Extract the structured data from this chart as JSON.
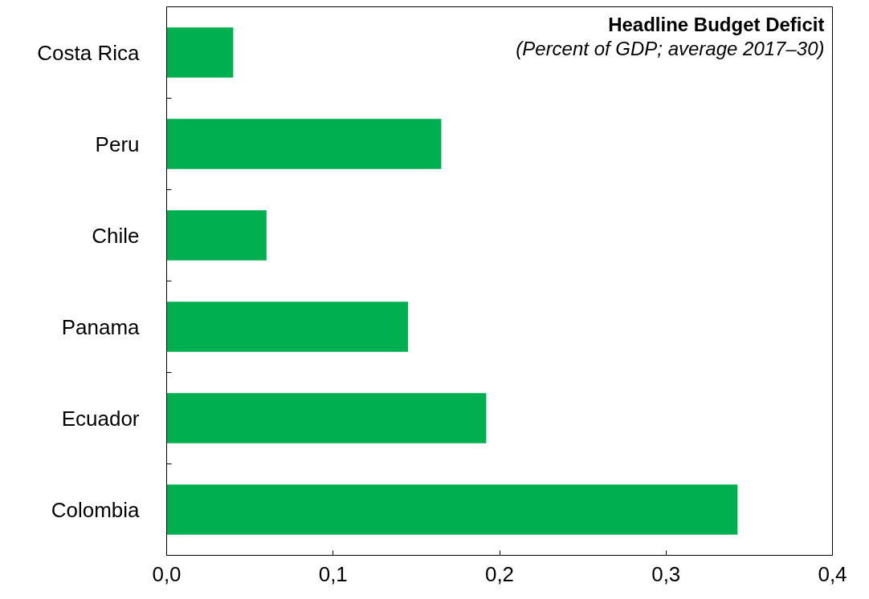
{
  "chart_data": {
    "type": "bar",
    "orientation": "horizontal",
    "title": "Headline Budget Deficit",
    "subtitle": "(Percent of GDP; average 2017–30)",
    "categories": [
      "Costa Rica",
      "Peru",
      "Chile",
      "Panama",
      "Ecuador",
      "Colombia"
    ],
    "values": [
      0.04,
      0.165,
      0.06,
      0.145,
      0.192,
      0.343
    ],
    "color": "#00b050",
    "xlim": [
      0,
      0.4
    ],
    "xticks": [
      {
        "value": 0,
        "label": "0,0"
      },
      {
        "value": 0.1,
        "label": "0,1"
      },
      {
        "value": 0.2,
        "label": "0,2"
      },
      {
        "value": 0.3,
        "label": "0,3"
      },
      {
        "value": 0.4,
        "label": "0,4"
      }
    ],
    "grid": false
  }
}
